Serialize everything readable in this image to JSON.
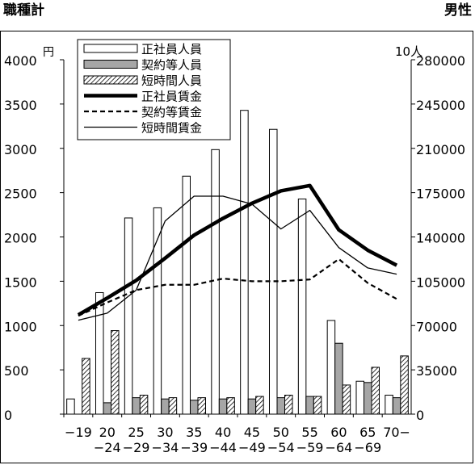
{
  "header": {
    "left_title": "職種計",
    "right_title": "男性"
  },
  "chart_data": {
    "type": "bar",
    "y_left_unit": "円",
    "y_right_unit": "10人",
    "y_left_lim": [
      0,
      4000
    ],
    "y_left_ticks": [
      0,
      500,
      1000,
      1500,
      2000,
      2500,
      3000,
      3500,
      4000
    ],
    "y_right_lim": [
      0,
      280000
    ],
    "y_right_ticks": [
      0,
      35000,
      70000,
      105000,
      140000,
      175000,
      210000,
      245000,
      280000
    ],
    "grid": false,
    "legend_position": "top-left",
    "categories": [
      [
        "−19",
        ""
      ],
      [
        "20",
        "−24"
      ],
      [
        "25",
        "−29"
      ],
      [
        "30",
        "−34"
      ],
      [
        "35",
        "−39"
      ],
      [
        "40",
        "−44"
      ],
      [
        "45",
        "−49"
      ],
      [
        "50",
        "−54"
      ],
      [
        "55",
        "−59"
      ],
      [
        "60",
        "−64"
      ],
      [
        "65",
        "−69"
      ],
      [
        "70−",
        ""
      ]
    ],
    "series": [
      {
        "name": "正社員人員",
        "kind": "bar",
        "axis": "right",
        "style": "white",
        "values": [
          12000,
          96000,
          155000,
          163000,
          188000,
          209000,
          240000,
          225000,
          170000,
          74000,
          26000,
          15000
        ]
      },
      {
        "name": "契約等人員",
        "kind": "bar",
        "axis": "right",
        "style": "gray",
        "values": [
          0,
          9000,
          13000,
          12000,
          11000,
          12000,
          12000,
          13000,
          14000,
          56000,
          25000,
          13000
        ]
      },
      {
        "name": "短時間人員",
        "kind": "bar",
        "axis": "right",
        "style": "hatched",
        "values": [
          44000,
          66000,
          15000,
          13000,
          13000,
          13000,
          14000,
          15000,
          14000,
          23000,
          37000,
          46000
        ]
      },
      {
        "name": "正社員賃金",
        "kind": "line",
        "axis": "left",
        "style": "thick",
        "values": [
          1120,
          1310,
          1510,
          1760,
          2020,
          2210,
          2380,
          2520,
          2580,
          2080,
          1850,
          1680
        ]
      },
      {
        "name": "契約等賃金",
        "kind": "line",
        "axis": "left",
        "style": "dashed",
        "values": [
          1110,
          1260,
          1400,
          1460,
          1460,
          1530,
          1500,
          1500,
          1520,
          1750,
          1480,
          1300
        ]
      },
      {
        "name": "短時間賃金",
        "kind": "line",
        "axis": "left",
        "style": "thin",
        "values": [
          1060,
          1140,
          1400,
          2180,
          2460,
          2460,
          2370,
          2090,
          2300,
          1880,
          1650,
          1580
        ]
      }
    ],
    "colors": {
      "bar_white": "#ffffff",
      "bar_gray": "#a6a6a6",
      "line": "#000000"
    }
  }
}
